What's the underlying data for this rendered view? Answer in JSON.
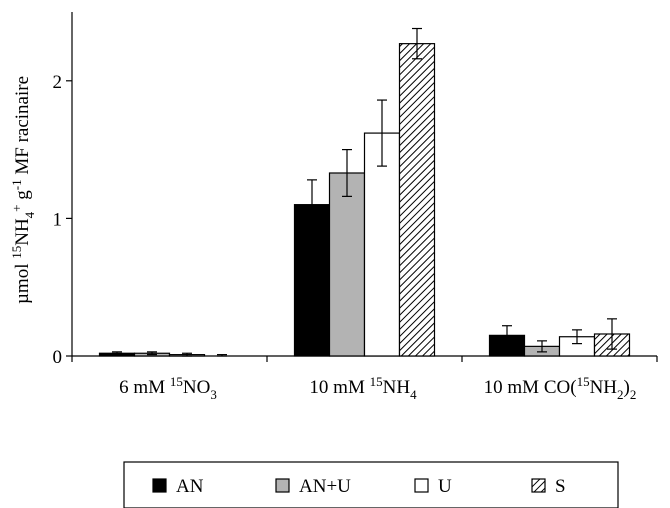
{
  "chart_data": {
    "type": "bar",
    "ylabel": "µmol 15NH4+ g-1 MF racinaire",
    "ylim": [
      0,
      2.5
    ],
    "y_ticks": [
      0,
      1,
      2
    ],
    "grid": false,
    "legend_position": "bottom",
    "categories": [
      "6 mM 15NO3",
      "10 mM 15NH4",
      "10 mM CO(15NH2)2"
    ],
    "series": [
      {
        "name": "AN",
        "fill": "solid-black",
        "color": "#000000",
        "values": [
          0.02,
          1.1,
          0.15
        ],
        "errors": [
          0.01,
          0.18,
          0.07
        ]
      },
      {
        "name": "AN+U",
        "fill": "solid-grey",
        "color": "#b3b3b3",
        "values": [
          0.02,
          1.33,
          0.07
        ],
        "errors": [
          0.01,
          0.17,
          0.04
        ]
      },
      {
        "name": "U",
        "fill": "white",
        "color": "#ffffff",
        "values": [
          0.01,
          1.62,
          0.14
        ],
        "errors": [
          0.01,
          0.24,
          0.05
        ]
      },
      {
        "name": "S",
        "fill": "hatched",
        "color": "#ffffff",
        "values": [
          0.0,
          2.27,
          0.16
        ],
        "errors": [
          0.01,
          0.11,
          0.11
        ]
      }
    ]
  }
}
